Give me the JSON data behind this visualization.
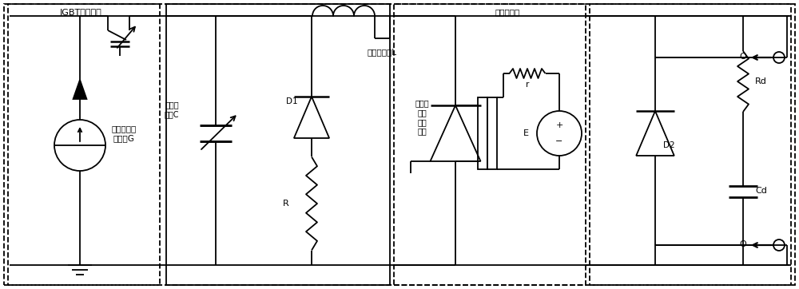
{
  "bg_color": "#ffffff",
  "line_color": "#000000",
  "lw": 1.3,
  "fig_width": 10.0,
  "fig_height": 3.62,
  "labels": {
    "igbt": "IGBT串联结构",
    "source_g": "可变频高压\n恒流源G",
    "cap_c": "可调电\n容器C",
    "inductor_l": "可调电抗器L",
    "resistor_r": "R",
    "diode_d1": "D1",
    "insulation": "绝缘导热板",
    "device": "大功率\n率半\n导体\n器件",
    "small_r": "r",
    "voltage_e": "E",
    "diode_d2": "D2",
    "rd": "Rd",
    "cd": "Cd"
  }
}
